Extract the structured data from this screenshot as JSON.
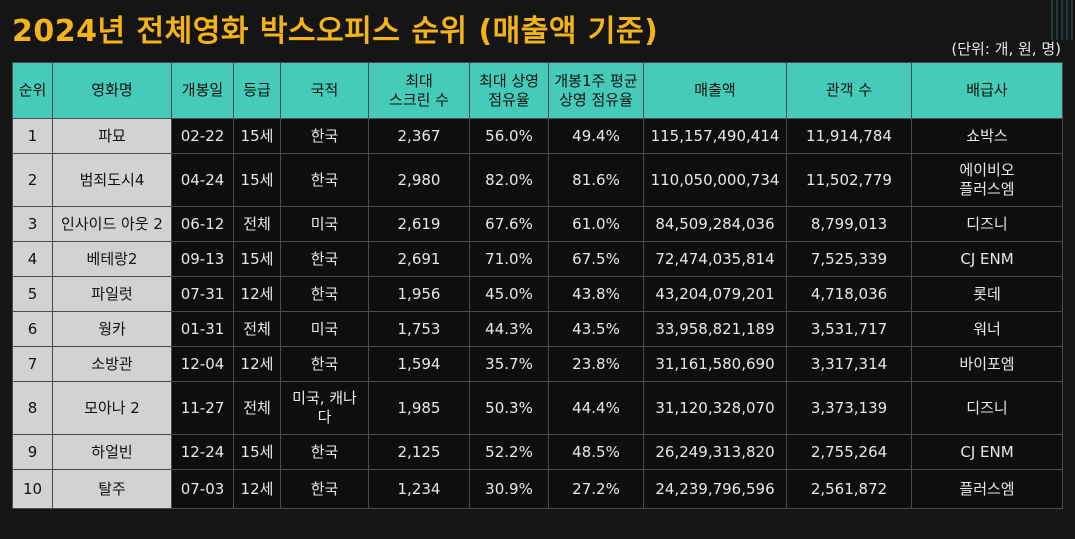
{
  "title": "2024년 전체영화 박스오피스 순위 (매출액 기준)",
  "unit": "(단위: 개, 원, 명)",
  "headers": [
    "순위",
    "영화명",
    "개봉일",
    "등급",
    "국적",
    "최대\n스크린 수",
    "최대 상영\n점유율",
    "개봉1주 평균\n상영 점유율",
    "매출액",
    "관객 수",
    "배급사"
  ],
  "rows": [
    [
      "1",
      "파묘",
      "02-22",
      "15세",
      "한국",
      "2,367",
      "56.0%",
      "49.4%",
      "115,157,490,414",
      "11,914,784",
      "쇼박스"
    ],
    [
      "2",
      "범죄도시4",
      "04-24",
      "15세",
      "한국",
      "2,980",
      "82.0%",
      "81.6%",
      "110,050,000,734",
      "11,502,779",
      "에이비오\n플러스엠"
    ],
    [
      "3",
      "인사이드 아웃 2",
      "06-12",
      "전체",
      "미국",
      "2,619",
      "67.6%",
      "61.0%",
      "84,509,284,036",
      "8,799,013",
      "디즈니"
    ],
    [
      "4",
      "베테랑2",
      "09-13",
      "15세",
      "한국",
      "2,691",
      "71.0%",
      "67.5%",
      "72,474,035,814",
      "7,525,339",
      "CJ ENM"
    ],
    [
      "5",
      "파일럿",
      "07-31",
      "12세",
      "한국",
      "1,956",
      "45.0%",
      "43.8%",
      "43,204,079,201",
      "4,718,036",
      "롯데"
    ],
    [
      "6",
      "웡카",
      "01-31",
      "전체",
      "미국",
      "1,753",
      "44.3%",
      "43.5%",
      "33,958,821,189",
      "3,531,717",
      "워너"
    ],
    [
      "7",
      "소방관",
      "12-04",
      "12세",
      "한국",
      "1,594",
      "35.7%",
      "23.8%",
      "31,161,580,690",
      "3,317,314",
      "바이포엠"
    ],
    [
      "8",
      "모아나 2",
      "11-27",
      "전체",
      "미국, 캐나\n다",
      "1,985",
      "50.3%",
      "44.4%",
      "31,120,328,070",
      "3,373,139",
      "디즈니"
    ],
    [
      "9",
      "하얼빈",
      "12-24",
      "15세",
      "한국",
      "2,125",
      "52.2%",
      "48.5%",
      "26,249,313,820",
      "2,755,264",
      "CJ ENM"
    ],
    [
      "10",
      "탈주",
      "07-03",
      "12세",
      "한국",
      "1,234",
      "30.9%",
      "27.2%",
      "24,239,796,596",
      "2,561,872",
      "플러스엠"
    ]
  ]
}
